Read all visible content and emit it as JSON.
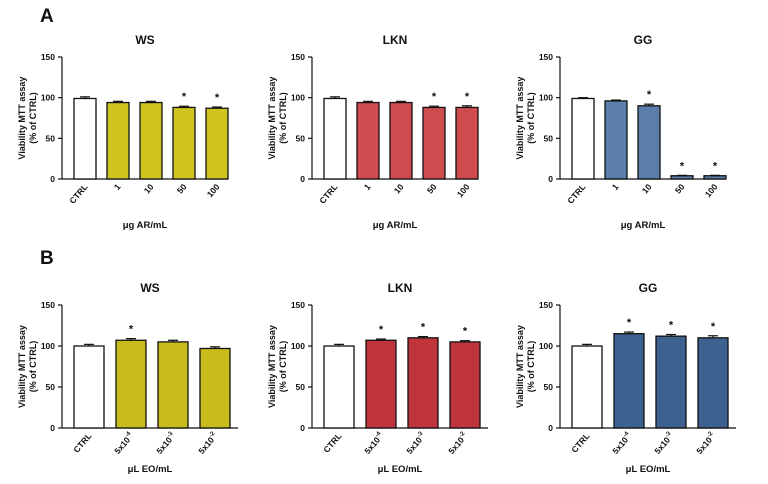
{
  "panels": [
    {
      "letter": "A"
    },
    {
      "letter": "B"
    }
  ],
  "chart_data": [
    {
      "type": "bar",
      "panel": "A",
      "title": "WS",
      "categories": [
        "CTRL",
        "1",
        "10",
        "50",
        "100"
      ],
      "values": [
        99,
        94,
        94,
        88,
        87
      ],
      "errors": [
        2,
        1.5,
        1.5,
        1.5,
        1.5
      ],
      "significant": [
        false,
        false,
        false,
        true,
        true
      ],
      "colors": [
        "#ffffff",
        "#cfc420",
        "#cfc420",
        "#cfc420",
        "#cfc420"
      ],
      "xlabel": "μg AR/mL",
      "ylabel": "Viability MTT assay",
      "ylabel2": "(% of CTRL)",
      "ylim": [
        0,
        150
      ],
      "yticks": [
        "0",
        "50",
        "100",
        "150"
      ],
      "grid": false
    },
    {
      "type": "bar",
      "panel": "A",
      "title": "LKN",
      "categories": [
        "CTRL",
        "1",
        "10",
        "50",
        "100"
      ],
      "values": [
        99,
        94,
        94,
        88,
        88
      ],
      "errors": [
        2,
        1.5,
        1.5,
        1.5,
        2
      ],
      "significant": [
        false,
        false,
        false,
        true,
        true
      ],
      "colors": [
        "#ffffff",
        "#d04b4e",
        "#d04b4e",
        "#d04b4e",
        "#d04b4e"
      ],
      "xlabel": "μg AR/mL",
      "ylabel": "Viability MTT assay",
      "ylabel2": "(% of CTRL)",
      "ylim": [
        0,
        150
      ],
      "yticks": [
        "0",
        "50",
        "100",
        "150"
      ],
      "grid": false
    },
    {
      "type": "bar",
      "panel": "A",
      "title": "GG",
      "categories": [
        "CTRL",
        "1",
        "10",
        "50",
        "100"
      ],
      "values": [
        99,
        96,
        90,
        4,
        4
      ],
      "errors": [
        1,
        1,
        2,
        0.5,
        0.5
      ],
      "significant": [
        false,
        false,
        true,
        true,
        true
      ],
      "colors": [
        "#ffffff",
        "#5b7ea8",
        "#5b7ea8",
        "#5b7ea8",
        "#5b7ea8"
      ],
      "xlabel": "μg AR/mL",
      "ylabel": "Viability MTT assay",
      "ylabel2": "(% of CTRL)",
      "ylim": [
        0,
        150
      ],
      "yticks": [
        "0",
        "50",
        "100",
        "150"
      ],
      "grid": false
    },
    {
      "type": "bar",
      "panel": "B",
      "title": "WS",
      "categories": [
        "CTRL",
        "5x10^-4",
        "5x10^-3",
        "5x10^-2"
      ],
      "values": [
        100,
        107,
        105,
        97
      ],
      "errors": [
        2,
        2,
        2,
        2
      ],
      "significant": [
        false,
        true,
        false,
        false
      ],
      "colors": [
        "#ffffff",
        "#c8bb1c",
        "#c8bb1c",
        "#c8bb1c"
      ],
      "xlabel": "μL EO/mL",
      "ylabel": "Viability MTT assay",
      "ylabel2": "(% of CTRL)",
      "ylim": [
        0,
        150
      ],
      "yticks": [
        "0",
        "50",
        "100",
        "150"
      ],
      "grid": false
    },
    {
      "type": "bar",
      "panel": "B",
      "title": "LKN",
      "categories": [
        "CTRL",
        "5x10^-4",
        "5x10^-3",
        "5x10^-2"
      ],
      "values": [
        100,
        107,
        110,
        105
      ],
      "errors": [
        2,
        1.5,
        1.5,
        1.5
      ],
      "significant": [
        false,
        true,
        true,
        true
      ],
      "colors": [
        "#ffffff",
        "#c0343c",
        "#c0343c",
        "#c0343c"
      ],
      "xlabel": "μL EO/mL",
      "ylabel": "Viability MTT assay",
      "ylabel2": "(% of CTRL)",
      "ylim": [
        0,
        150
      ],
      "yticks": [
        "0",
        "50",
        "100",
        "150"
      ],
      "grid": false
    },
    {
      "type": "bar",
      "panel": "B",
      "title": "GG",
      "categories": [
        "CTRL",
        "5x10^-4",
        "5x10^-3",
        "5x10^-2"
      ],
      "values": [
        100,
        115,
        112,
        110
      ],
      "errors": [
        2,
        2,
        2,
        2.5
      ],
      "significant": [
        false,
        true,
        true,
        true
      ],
      "colors": [
        "#ffffff",
        "#3d6290",
        "#3d6290",
        "#3d6290"
      ],
      "xlabel": "μL EO/mL",
      "ylabel": "Viability MTT assay",
      "ylabel2": "(% of CTRL)",
      "ylim": [
        0,
        150
      ],
      "yticks": [
        "0",
        "50",
        "100",
        "150"
      ],
      "grid": false
    }
  ]
}
